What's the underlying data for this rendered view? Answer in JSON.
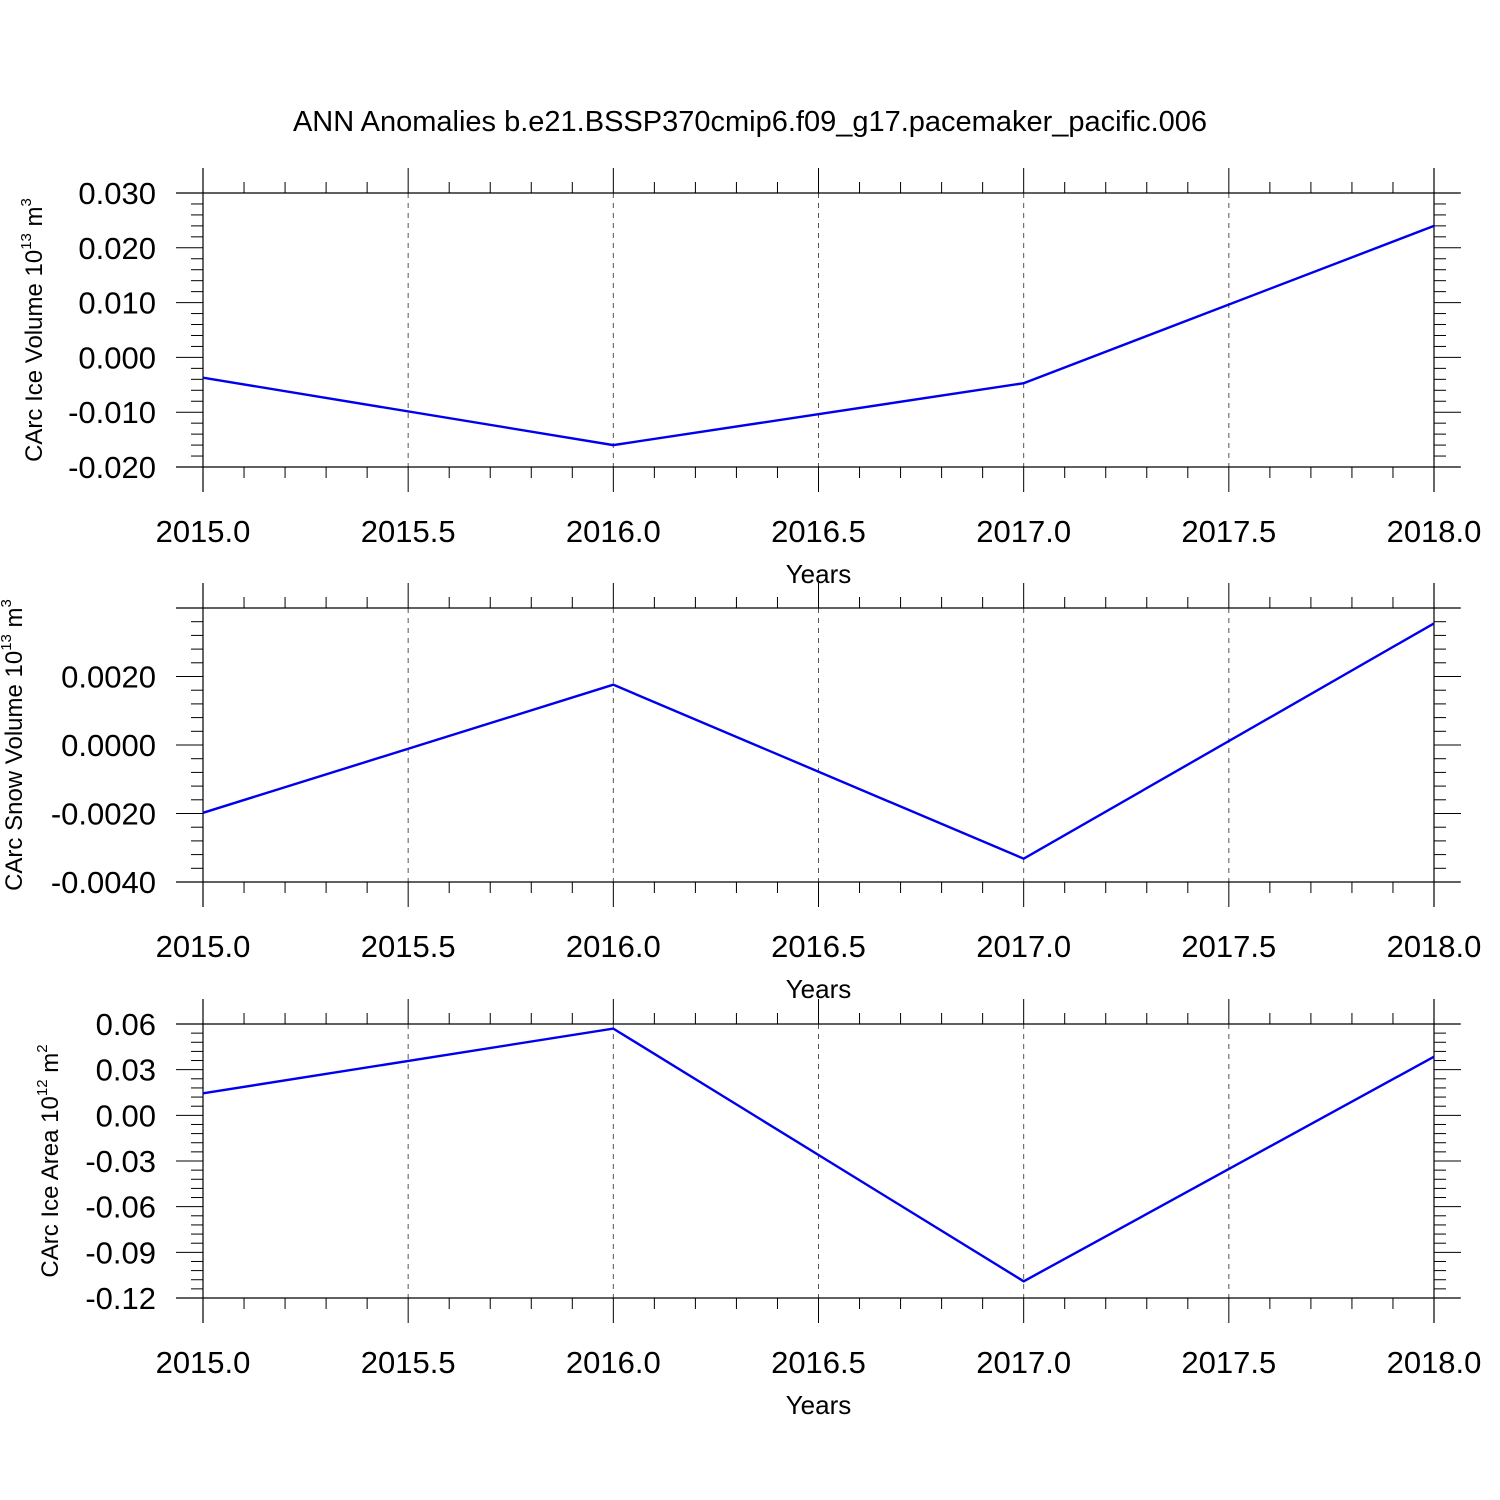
{
  "title": "ANN Anomalies b.e21.BSSP370cmip6.f09_g17.pacemaker_pacific.006",
  "colors": {
    "series": "#0000ee",
    "axes": "#000000",
    "grid": "#555555"
  },
  "chart_data": [
    {
      "type": "line",
      "xlabel": "Years",
      "ylabel_prefix": "CArc Ice Volume 10",
      "ylabel_exp": "13",
      "ylabel_unit": " m",
      "ylabel_unit_exp": "3",
      "xlim": [
        2015.0,
        2018.0
      ],
      "ylim": [
        -0.02,
        0.03
      ],
      "x_ticks": [
        "2015.0",
        "2015.5",
        "2016.0",
        "2016.5",
        "2017.0",
        "2017.5",
        "2018.0"
      ],
      "y_ticks": [
        "0.030",
        "0.020",
        "0.010",
        "0.000",
        "-0.010",
        "-0.020"
      ],
      "y_tick_values": [
        0.03,
        0.02,
        0.01,
        0.0,
        -0.01,
        -0.02
      ],
      "grid": "vertical-dashed",
      "series": [
        {
          "x": [
            2015,
            2016,
            2017,
            2018
          ],
          "values": [
            -0.0037,
            -0.016,
            -0.0047,
            0.024
          ]
        }
      ]
    },
    {
      "type": "line",
      "xlabel": "Years",
      "ylabel_prefix": "CArc Snow Volume 10",
      "ylabel_exp": "13",
      "ylabel_unit": " m",
      "ylabel_unit_exp": "3",
      "xlim": [
        2015.0,
        2018.0
      ],
      "ylim": [
        -0.004,
        0.004
      ],
      "x_ticks": [
        "2015.0",
        "2015.5",
        "2016.0",
        "2016.5",
        "2017.0",
        "2017.5",
        "2018.0"
      ],
      "y_ticks": [
        "0.0020",
        "0.0000",
        "-0.0020",
        "-0.0040"
      ],
      "y_tick_values": [
        0.002,
        0.0,
        -0.002,
        -0.004
      ],
      "grid": "vertical-dashed",
      "series": [
        {
          "x": [
            2015,
            2016,
            2017,
            2018
          ],
          "values": [
            -0.00198,
            0.00176,
            -0.00332,
            0.00355
          ]
        }
      ]
    },
    {
      "type": "line",
      "xlabel": "Years",
      "ylabel_prefix": "CArc Ice Area 10",
      "ylabel_exp": "12",
      "ylabel_unit": " m",
      "ylabel_unit_exp": "2",
      "xlim": [
        2015.0,
        2018.0
      ],
      "ylim": [
        -0.12,
        0.06
      ],
      "x_ticks": [
        "2015.0",
        "2015.5",
        "2016.0",
        "2016.5",
        "2017.0",
        "2017.5",
        "2018.0"
      ],
      "y_ticks": [
        "0.06",
        "0.03",
        "0.00",
        "-0.03",
        "-0.06",
        "-0.09",
        "-0.12"
      ],
      "y_tick_values": [
        0.06,
        0.03,
        0.0,
        -0.03,
        -0.06,
        -0.09,
        -0.12
      ],
      "grid": "vertical-dashed",
      "series": [
        {
          "x": [
            2015,
            2016,
            2017,
            2018
          ],
          "values": [
            0.0145,
            0.057,
            -0.109,
            0.0385
          ]
        }
      ]
    }
  ]
}
